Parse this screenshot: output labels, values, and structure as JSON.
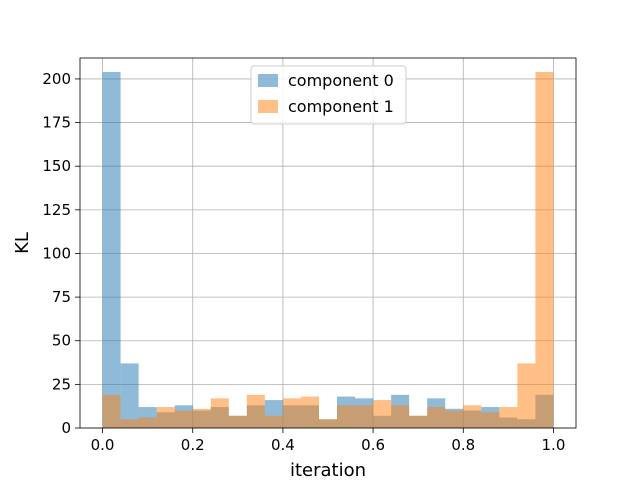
{
  "chart_data": {
    "type": "bar",
    "subtype": "overlaid-histogram",
    "title": "",
    "xlabel": "iteration",
    "ylabel": "KL",
    "xlim": [
      -0.05,
      1.05
    ],
    "ylim": [
      0,
      212
    ],
    "xticks": [
      0.0,
      0.2,
      0.4,
      0.6,
      0.8,
      1.0
    ],
    "xtick_labels": [
      "0.0",
      "0.2",
      "0.4",
      "0.6",
      "0.8",
      "1.0"
    ],
    "yticks": [
      0,
      25,
      50,
      75,
      100,
      125,
      150,
      175,
      200
    ],
    "ytick_labels": [
      "0",
      "25",
      "50",
      "75",
      "100",
      "125",
      "150",
      "175",
      "200"
    ],
    "grid": true,
    "legend_position": "upper center",
    "bin_edges": [
      0.0,
      0.04,
      0.08,
      0.12,
      0.16,
      0.2,
      0.24,
      0.28,
      0.32,
      0.36,
      0.4,
      0.44,
      0.48,
      0.52,
      0.56,
      0.6,
      0.64,
      0.68,
      0.72,
      0.76,
      0.8,
      0.84,
      0.88,
      0.92,
      0.96,
      1.0
    ],
    "series": [
      {
        "name": "component 0",
        "color": "#1f77b4",
        "alpha": 0.5,
        "values": [
          204,
          37,
          12,
          9,
          13,
          10,
          12,
          7,
          13,
          16,
          13,
          13,
          5,
          18,
          17,
          7,
          19,
          7,
          17,
          11,
          10,
          12,
          6,
          5,
          19
        ]
      },
      {
        "name": "component 1",
        "color": "#ff7f0e",
        "alpha": 0.5,
        "values": [
          19,
          5,
          6,
          12,
          10,
          11,
          17,
          7,
          19,
          7,
          17,
          18,
          5,
          13,
          13,
          16,
          13,
          7,
          12,
          10,
          13,
          9,
          12,
          37,
          204
        ]
      }
    ]
  }
}
